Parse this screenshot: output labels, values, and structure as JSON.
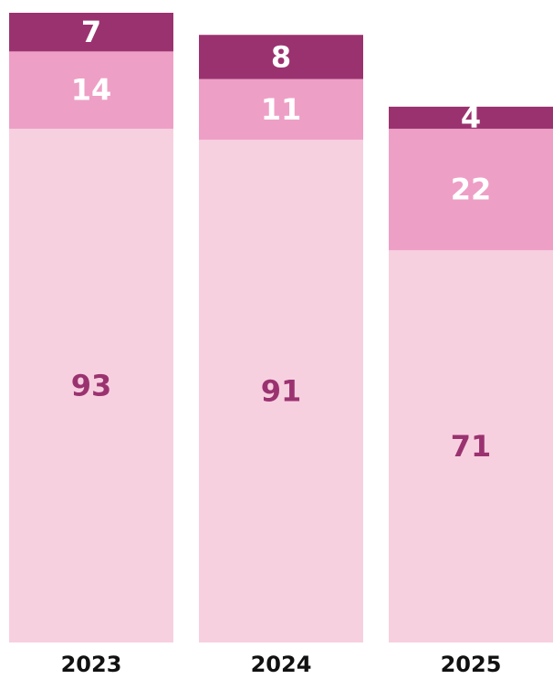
{
  "chart_data": {
    "type": "stacked-bar",
    "categories": [
      "2023",
      "2024",
      "2025"
    ],
    "series": [
      {
        "color": "#f7d0e0",
        "label_color": "#9b3270",
        "values": [
          93,
          91,
          71
        ]
      },
      {
        "color": "#ee9fc6",
        "label_color": "#ffffff",
        "values": [
          14,
          11,
          22
        ]
      },
      {
        "color": "#9b3270",
        "label_color": "#ffffff",
        "values": [
          7,
          8,
          4
        ]
      }
    ]
  }
}
